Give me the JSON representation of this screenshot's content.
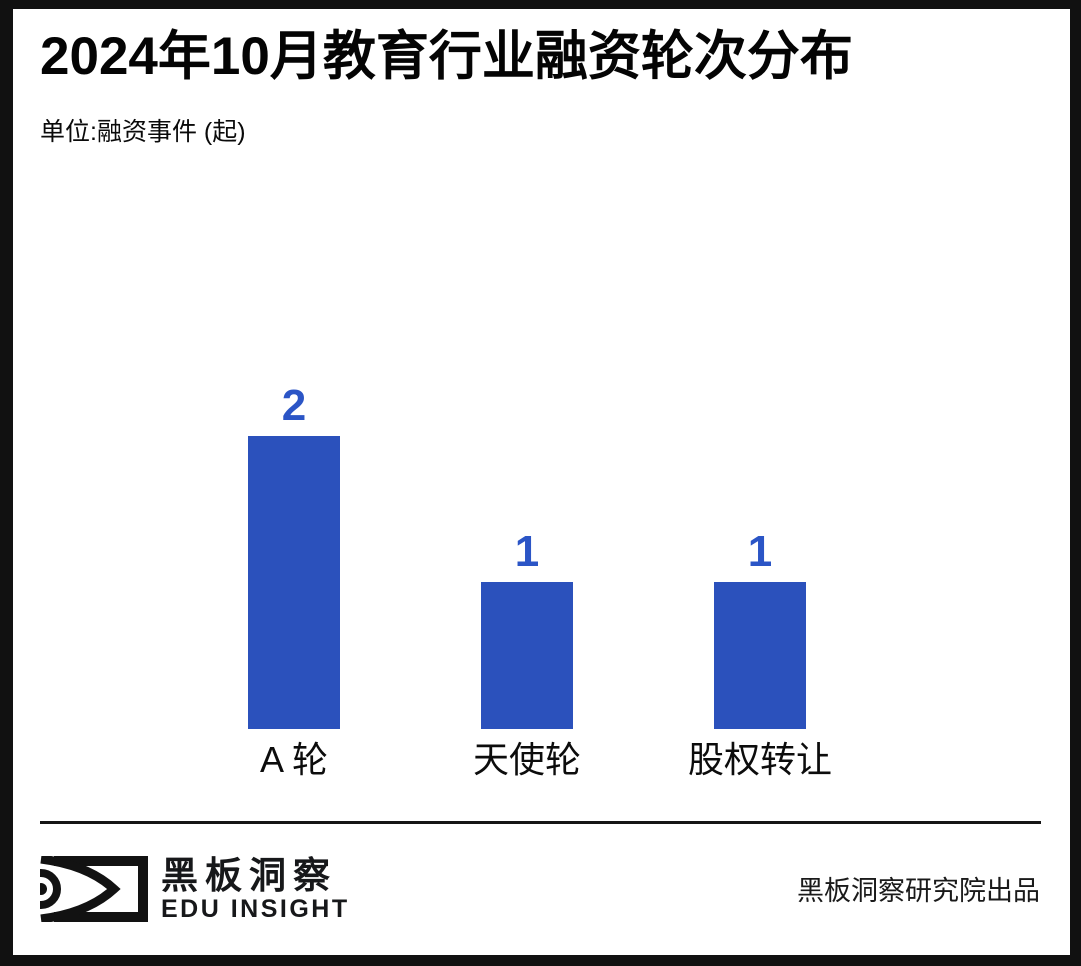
{
  "page": {
    "background": "#ffffff",
    "frame_border_color": "#111111"
  },
  "header": {
    "title": "2024年10月教育行业融资轮次分布",
    "unit_label": "单位:融资事件 (起)"
  },
  "chart_data": {
    "type": "bar",
    "categories": [
      "A 轮",
      "天使轮",
      "股权转让"
    ],
    "values": [
      2,
      1,
      1
    ],
    "title": "2024年10月教育行业融资轮次分布",
    "xlabel": "",
    "ylabel": "融资事件 (起)",
    "ylim": [
      0,
      2
    ],
    "grid": false,
    "legend": false,
    "value_labels_shown": true,
    "bar_color": "#2b51bc",
    "value_label_color": "#2b55c6",
    "category_label_color": "#0c0c0c"
  },
  "footer": {
    "logo": {
      "icon": "eye-logo-icon",
      "brand_cn": "黑板洞察",
      "brand_en": "EDU INSIGHT"
    },
    "credit": "黑板洞察研究院出品"
  }
}
